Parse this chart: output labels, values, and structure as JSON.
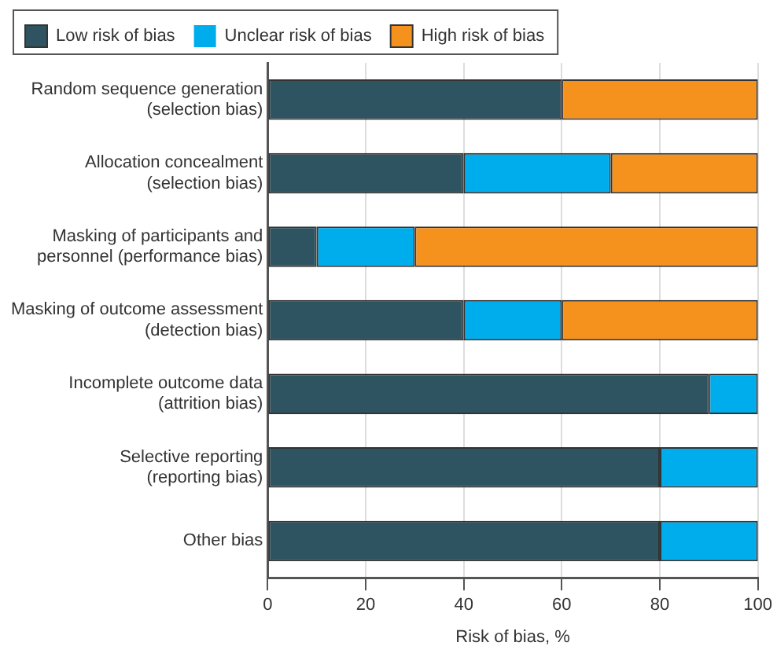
{
  "chart_data": {
    "type": "bar",
    "orientation": "horizontal",
    "stacked": true,
    "categories": [
      "Random sequence generation\n(selection bias)",
      "Allocation concealment\n(selection bias)",
      "Masking of participants and\npersonnel (performance bias)",
      "Masking of outcome assessment\n(detection bias)",
      "Incomplete outcome data\n(attrition bias)",
      "Selective reporting\n(reporting bias)",
      "Other bias"
    ],
    "series": [
      {
        "name": "Low risk of bias",
        "color": "#2e5361",
        "values": [
          60,
          40,
          10,
          40,
          90,
          80,
          80
        ]
      },
      {
        "name": "Unclear risk of bias",
        "color": "#00adec",
        "values": [
          0,
          30,
          20,
          20,
          10,
          20,
          20
        ]
      },
      {
        "name": "High risk of bias",
        "color": "#f5921e",
        "values": [
          40,
          30,
          70,
          40,
          0,
          0,
          0
        ]
      }
    ],
    "xlabel": "Risk of bias, %",
    "xlim": [
      0,
      100
    ],
    "xticks": [
      0,
      20,
      40,
      60,
      80,
      100
    ],
    "grid": "x",
    "legend": "top left"
  }
}
